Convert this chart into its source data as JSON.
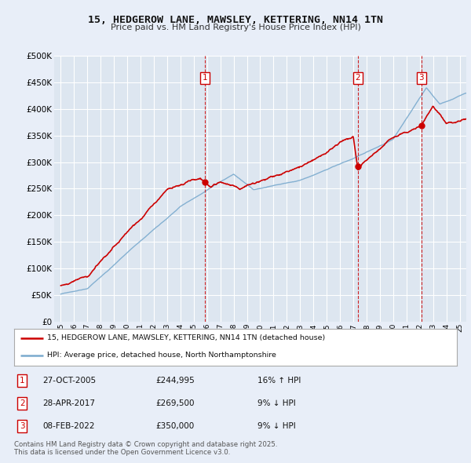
{
  "title": "15, HEDGEROW LANE, MAWSLEY, KETTERING, NN14 1TN",
  "subtitle": "Price paid vs. HM Land Registry's House Price Index (HPI)",
  "background_color": "#e8eef8",
  "plot_bg_color": "#dde6f0",
  "grid_color": "#ffffff",
  "transactions": [
    {
      "num": 1,
      "date_label": "27-OCT-2005",
      "date_x": 2005.82,
      "price": 244995,
      "pct": "16% ↑ HPI"
    },
    {
      "num": 2,
      "date_label": "28-APR-2017",
      "date_x": 2017.33,
      "price": 269500,
      "pct": "9% ↓ HPI"
    },
    {
      "num": 3,
      "date_label": "08-FEB-2022",
      "date_x": 2022.12,
      "price": 350000,
      "pct": "9% ↓ HPI"
    }
  ],
  "legend_line1": "15, HEDGEROW LANE, MAWSLEY, KETTERING, NN14 1TN (detached house)",
  "legend_line2": "HPI: Average price, detached house, North Northamptonshire",
  "footer": "Contains HM Land Registry data © Crown copyright and database right 2025.\nThis data is licensed under the Open Government Licence v3.0.",
  "ylim": [
    0,
    500000
  ],
  "yticks": [
    0,
    50000,
    100000,
    150000,
    200000,
    250000,
    300000,
    350000,
    400000,
    450000,
    500000
  ],
  "xlim": [
    1994.5,
    2025.5
  ],
  "red_color": "#cc0000",
  "blue_color": "#7aaace",
  "transaction_dot_color": "#cc0000"
}
